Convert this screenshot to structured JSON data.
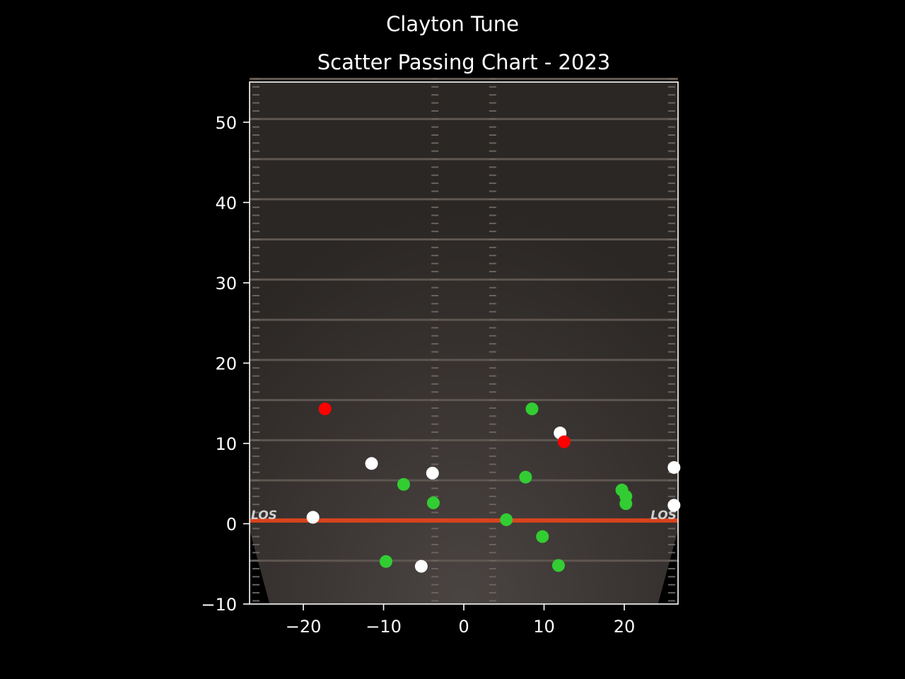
{
  "figure": {
    "suptitle": "Clayton Tune",
    "background": "#000000"
  },
  "chart_data": {
    "type": "scatter",
    "title": "Scatter Passing Chart - 2023",
    "xlabel": "",
    "ylabel": "",
    "xlim": [
      -26.7,
      26.7
    ],
    "ylim": [
      -10,
      55
    ],
    "xticks": [
      -20,
      -10,
      0,
      10,
      20
    ],
    "yticks": [
      -10,
      0,
      10,
      20,
      30,
      40,
      50
    ],
    "grid": false,
    "legend": "none",
    "field_image": {
      "los_label": "LOS",
      "line_of_scrimmage_y": 0.4,
      "turf_color": "#2b2725",
      "los_color": "#d8431d"
    },
    "series": [
      {
        "color": "#32cd32",
        "x": [
          8.5,
          7.7,
          -7.5,
          -3.8,
          5.3,
          9.8,
          -9.7,
          11.8,
          19.7,
          20.2,
          20.2
        ],
        "y": [
          14.3,
          5.8,
          4.9,
          2.6,
          0.5,
          -1.6,
          -4.7,
          -5.2,
          4.2,
          3.4,
          2.5
        ]
      },
      {
        "color": "#ffffff",
        "x": [
          12.0,
          -11.5,
          -3.9,
          -18.8,
          -5.3,
          26.2,
          26.2
        ],
        "y": [
          11.3,
          7.5,
          6.3,
          0.8,
          -5.3,
          7.0,
          2.3
        ]
      },
      {
        "color": "#ff0000",
        "x": [
          -17.3,
          12.5
        ],
        "y": [
          14.3,
          10.2
        ]
      }
    ]
  }
}
